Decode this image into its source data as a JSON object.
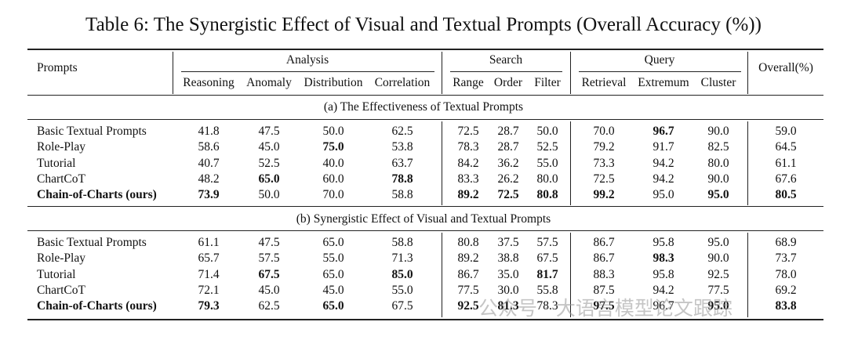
{
  "title": "Table 6: The Synergistic Effect of Visual and Textual Prompts (Overall Accuracy (%))",
  "header": {
    "prompts": "Prompts",
    "overall": "Overall(%)",
    "groups": [
      {
        "label": "Analysis",
        "subs": [
          "Reasoning",
          "Anomaly",
          "Distribution",
          "Correlation"
        ]
      },
      {
        "label": "Search",
        "subs": [
          "Range",
          "Order",
          "Filter"
        ]
      },
      {
        "label": "Query",
        "subs": [
          "Retrieval",
          "Extremum",
          "Cluster"
        ]
      }
    ]
  },
  "sections": [
    {
      "title": "(a) The Effectiveness of Textual Prompts",
      "rows": [
        {
          "name": "Basic Textual Prompts",
          "values": [
            "41.8",
            "47.5",
            "50.0",
            "62.5",
            "72.5",
            "28.7",
            "50.0",
            "70.0",
            "96.7",
            "90.0",
            "59.0"
          ],
          "bold": [
            false,
            false,
            false,
            false,
            false,
            false,
            false,
            false,
            true,
            false,
            false
          ]
        },
        {
          "name": "Role-Play",
          "values": [
            "58.6",
            "45.0",
            "75.0",
            "53.8",
            "78.3",
            "28.7",
            "52.5",
            "79.2",
            "91.7",
            "82.5",
            "64.5"
          ],
          "bold": [
            false,
            false,
            true,
            false,
            false,
            false,
            false,
            false,
            false,
            false,
            false
          ]
        },
        {
          "name": "Tutorial",
          "values": [
            "40.7",
            "52.5",
            "40.0",
            "63.7",
            "84.2",
            "36.2",
            "55.0",
            "73.3",
            "94.2",
            "80.0",
            "61.1"
          ],
          "bold": [
            false,
            false,
            false,
            false,
            false,
            false,
            false,
            false,
            false,
            false,
            false
          ]
        },
        {
          "name": "ChartCoT",
          "values": [
            "48.2",
            "65.0",
            "60.0",
            "78.8",
            "83.3",
            "26.2",
            "80.0",
            "72.5",
            "94.2",
            "90.0",
            "67.6"
          ],
          "bold": [
            false,
            true,
            false,
            true,
            false,
            false,
            false,
            false,
            false,
            false,
            false
          ]
        },
        {
          "name": "Chain-of-Charts (ours)",
          "name_bold": true,
          "values": [
            "73.9",
            "50.0",
            "70.0",
            "58.8",
            "89.2",
            "72.5",
            "80.8",
            "99.2",
            "95.0",
            "95.0",
            "80.5"
          ],
          "bold": [
            true,
            false,
            false,
            false,
            true,
            true,
            true,
            true,
            false,
            true,
            true
          ]
        }
      ]
    },
    {
      "title": "(b) Synergistic Effect of Visual and Textual Prompts",
      "rows": [
        {
          "name": "Basic Textual Prompts",
          "values": [
            "61.1",
            "47.5",
            "65.0",
            "58.8",
            "80.8",
            "37.5",
            "57.5",
            "86.7",
            "95.8",
            "95.0",
            "68.9"
          ],
          "bold": [
            false,
            false,
            false,
            false,
            false,
            false,
            false,
            false,
            false,
            false,
            false
          ]
        },
        {
          "name": "Role-Play",
          "values": [
            "65.7",
            "57.5",
            "55.0",
            "71.3",
            "89.2",
            "38.8",
            "67.5",
            "86.7",
            "98.3",
            "90.0",
            "73.7"
          ],
          "bold": [
            false,
            false,
            false,
            false,
            false,
            false,
            false,
            false,
            true,
            false,
            false
          ]
        },
        {
          "name": "Tutorial",
          "values": [
            "71.4",
            "67.5",
            "65.0",
            "85.0",
            "86.7",
            "35.0",
            "81.7",
            "88.3",
            "95.8",
            "92.5",
            "78.0"
          ],
          "bold": [
            false,
            true,
            false,
            true,
            false,
            false,
            true,
            false,
            false,
            false,
            false
          ]
        },
        {
          "name": "ChartCoT",
          "values": [
            "72.1",
            "45.0",
            "45.0",
            "55.0",
            "77.5",
            "30.0",
            "55.8",
            "87.5",
            "94.2",
            "77.5",
            "69.2"
          ],
          "bold": [
            false,
            false,
            false,
            false,
            false,
            false,
            false,
            false,
            false,
            false,
            false
          ]
        },
        {
          "name": "Chain-of-Charts (ours)",
          "name_bold": true,
          "values": [
            "79.3",
            "62.5",
            "65.0",
            "67.5",
            "92.5",
            "81.3",
            "78.3",
            "97.5",
            "96.7",
            "95.0",
            "83.8"
          ],
          "bold": [
            true,
            false,
            true,
            false,
            true,
            true,
            false,
            true,
            false,
            true,
            true
          ]
        }
      ]
    }
  ],
  "watermark": "公众号 · 大语言模型论文跟踪"
}
